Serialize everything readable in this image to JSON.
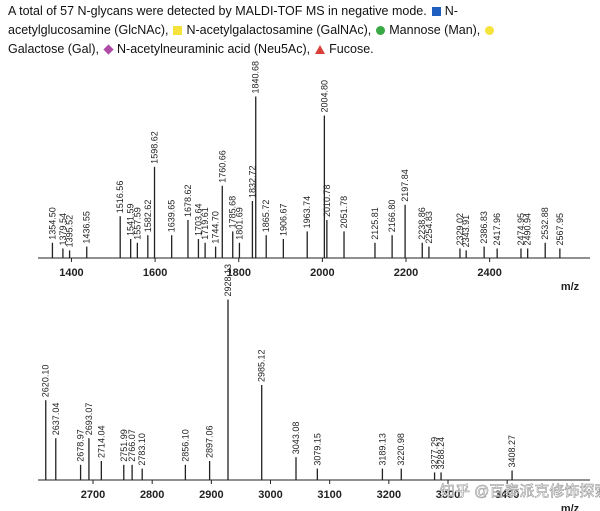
{
  "caption": "A total of 57 N-glycans were detected by MALDI-TOF MS in negative mode.",
  "legend": [
    {
      "name": "N-acetylglucosamine (GlcNAc),",
      "shape": "square",
      "color": "#1f5fbf"
    },
    {
      "name": "N-acetylgalactosamine (GalNAc),",
      "shape": "square",
      "color": "#f5e23a"
    },
    {
      "name": "Mannose (Man),",
      "shape": "circle",
      "color": "#3aa845"
    },
    {
      "name": "Galactose (Gal),",
      "shape": "circle",
      "color": "#f5e23a"
    },
    {
      "name": "N-acetylneuraminic acid (Neu5Ac),",
      "shape": "diamond",
      "color": "#b04aa8"
    },
    {
      "name": "Fucose.",
      "shape": "triangle",
      "color": "#d9403a"
    }
  ],
  "watermark": "知乎 @百泰派克修饰探索",
  "chart_data": [
    {
      "type": "stick",
      "xlabel": "m/z",
      "color": "#222222",
      "xlim": [
        1320,
        2640
      ],
      "ylim": [
        0,
        100
      ],
      "xticks": [
        1400,
        1600,
        1800,
        2000,
        2200,
        2400
      ],
      "x": [
        1354.5,
        1379.54,
        1395.52,
        1436.55,
        1516.56,
        1541.59,
        1557.59,
        1582.62,
        1598.62,
        1639.65,
        1678.62,
        1703.64,
        1719.61,
        1744.7,
        1760.66,
        1785.68,
        1801.69,
        1832.72,
        1840.68,
        1865.72,
        1906.67,
        1963.74,
        2004.8,
        2010.78,
        2051.78,
        2125.81,
        2166.8,
        2197.84,
        2238.86,
        2254.83,
        2329.02,
        2343.91,
        2386.83,
        2417.96,
        2474.95,
        2490.94,
        2532.88,
        2567.95
      ],
      "x_labels": [
        "1354.50",
        "1379.54",
        "1395.52",
        "1436.55",
        "1516.56",
        "1541.59",
        "1557.59",
        "1582.62",
        "1598.62",
        "1639.65",
        "1678.62",
        "1703.64",
        "1719.61",
        "1744.70",
        "1760.66",
        "1785.68",
        "1801.69",
        "1832.72",
        "1840.68",
        "1865.72",
        "1906.67",
        "1963.74",
        "2004.80",
        "2010.78",
        "2051.78",
        "2125.81",
        "2166.80",
        "2197.84",
        "2238.86",
        "2254.83",
        "2329.02",
        "2343.91",
        "2386.83",
        "2417.96",
        "2474.95",
        "2490.94",
        "2532.88",
        "2567.95"
      ],
      "values": [
        8,
        5,
        4,
        6,
        22,
        10,
        8,
        12,
        48,
        12,
        20,
        10,
        8,
        6,
        38,
        14,
        8,
        30,
        85,
        12,
        10,
        14,
        75,
        20,
        14,
        8,
        12,
        28,
        8,
        6,
        5,
        4,
        6,
        5,
        5,
        5,
        8,
        5
      ]
    },
    {
      "type": "stick",
      "xlabel": "m/z",
      "color": "#222222",
      "xlim": [
        2607,
        3540
      ],
      "ylim": [
        0,
        100
      ],
      "xticks": [
        2700,
        2800,
        2900,
        3000,
        3100,
        3200,
        3300,
        3400
      ],
      "x": [
        2620.1,
        2637.04,
        2678.97,
        2693.07,
        2714.04,
        2751.99,
        2766.07,
        2783.1,
        2856.1,
        2897.06,
        2928.13,
        2985.12,
        3043.08,
        3079.15,
        3189.13,
        3220.98,
        3277.29,
        3288.24,
        3408.27
      ],
      "x_labels": [
        "2620.10",
        "2637.04",
        "2678.97",
        "2693.07",
        "2714.04",
        "2751.99",
        "2766.07",
        "2783.10",
        "2856.10",
        "2897.06",
        "2928.13",
        "2985.12",
        "3043.08",
        "3079.15",
        "3189.13",
        "3220.98",
        "3277.29",
        "3288.24",
        "3408.27"
      ],
      "values": [
        42,
        22,
        8,
        22,
        10,
        8,
        8,
        6,
        8,
        10,
        95,
        50,
        12,
        6,
        6,
        6,
        4,
        4,
        5
      ]
    }
  ]
}
